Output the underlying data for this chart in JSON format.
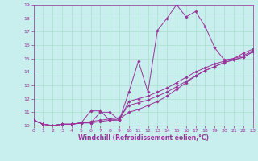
{
  "xlabel": "Windchill (Refroidissement éolien,°C)",
  "xlim": [
    0,
    23
  ],
  "ylim": [
    10,
    19
  ],
  "xticks": [
    0,
    1,
    2,
    3,
    4,
    5,
    6,
    7,
    8,
    9,
    10,
    11,
    12,
    13,
    14,
    15,
    16,
    17,
    18,
    19,
    20,
    21,
    22,
    23
  ],
  "yticks": [
    10,
    11,
    12,
    13,
    14,
    15,
    16,
    17,
    18,
    19
  ],
  "bg_color": "#c8eeee",
  "line_color": "#993399",
  "grid_color": "#aaddcc",
  "lines": [
    {
      "x": [
        0,
        1,
        2,
        3,
        4,
        5,
        6,
        7,
        8,
        9,
        10,
        11,
        12,
        13,
        14,
        15,
        16,
        17,
        18,
        19,
        20,
        21,
        22,
        23
      ],
      "y": [
        10.4,
        10.1,
        10.0,
        10.1,
        10.1,
        10.2,
        11.1,
        11.1,
        10.4,
        10.4,
        12.5,
        14.8,
        12.5,
        17.1,
        18.0,
        19.0,
        18.1,
        18.5,
        17.4,
        15.8,
        14.9,
        15.0,
        15.4,
        15.7
      ]
    },
    {
      "x": [
        0,
        1,
        2,
        3,
        4,
        5,
        6,
        7,
        8,
        9,
        10,
        11,
        12,
        13,
        14,
        15,
        16,
        17,
        18,
        19,
        20,
        21,
        22,
        23
      ],
      "y": [
        10.4,
        10.1,
        10.0,
        10.1,
        10.1,
        10.2,
        10.2,
        11.0,
        11.0,
        10.4,
        11.8,
        12.0,
        12.2,
        12.5,
        12.8,
        13.2,
        13.6,
        14.0,
        14.3,
        14.6,
        14.8,
        15.0,
        15.2,
        15.6
      ]
    },
    {
      "x": [
        0,
        1,
        2,
        3,
        4,
        5,
        6,
        7,
        8,
        9,
        10,
        11,
        12,
        13,
        14,
        15,
        16,
        17,
        18,
        19,
        20,
        21,
        22,
        23
      ],
      "y": [
        10.4,
        10.1,
        10.0,
        10.1,
        10.1,
        10.2,
        10.3,
        10.4,
        10.5,
        10.6,
        11.5,
        11.7,
        11.9,
        12.2,
        12.5,
        12.9,
        13.3,
        13.7,
        14.1,
        14.4,
        14.7,
        14.9,
        15.1,
        15.5
      ]
    },
    {
      "x": [
        0,
        1,
        2,
        3,
        4,
        5,
        6,
        7,
        8,
        9,
        10,
        11,
        12,
        13,
        14,
        15,
        16,
        17,
        18,
        19,
        20,
        21,
        22,
        23
      ],
      "y": [
        10.4,
        10.1,
        10.0,
        10.1,
        10.1,
        10.2,
        10.2,
        10.3,
        10.4,
        10.5,
        11.0,
        11.2,
        11.5,
        11.8,
        12.2,
        12.7,
        13.2,
        13.7,
        14.1,
        14.4,
        14.7,
        14.9,
        15.1,
        15.5
      ]
    }
  ]
}
